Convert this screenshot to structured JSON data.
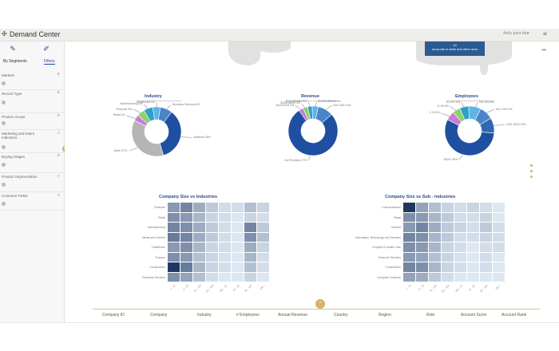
{
  "app": {
    "title": "Demand Center",
    "user": "Antic para dez",
    "user_caret": "v",
    "menu_icon": "hamburger-menu-icon"
  },
  "sidebar": {
    "tabs": [
      {
        "label": "By Segments"
      },
      {
        "label": "Filters"
      }
    ],
    "items": [
      {
        "label": "Markets"
      },
      {
        "label": "Record Type"
      },
      {
        "label": "Product Scope"
      },
      {
        "label": "Marketing and Intent Indicators"
      },
      {
        "label": "Buying Stages"
      },
      {
        "label": "Product Segmentation"
      },
      {
        "label": "Customer Fields"
      }
    ],
    "collapse_label": "<<"
  },
  "tooltip": {
    "line1": "10",
    "line2": "accounts in state and other area"
  },
  "more_menu": "•••",
  "chart_data": [
    {
      "type": "pie",
      "title": "Industry",
      "labels": [
        "Retail",
        "Financial",
        "Manufacturing",
        "Healthcare",
        "Business Services",
        "Software",
        "Other"
      ],
      "values": [
        4,
        5,
        6,
        5,
        8,
        35,
        37
      ],
      "slice_labels": [
        "Retail 4%",
        "Financial 5%",
        "Manufacturing 6%",
        "Healthcare 5%",
        "Business Services 8%",
        "Software 35%",
        "Other 37%"
      ],
      "colors": [
        "#c77cd6",
        "#8fd16a",
        "#2ea1c7",
        "#5fb3e6",
        "#4a85c9",
        "#1f4fa0",
        "#b5b5b5"
      ]
    },
    {
      "type": "pie",
      "title": "Revenue",
      "labels": [
        "$1M-$10M",
        "$10M-$50M",
        "$50M-$100M",
        "$100M-$500M",
        "Over $1B",
        "Not Provided"
      ],
      "values": [
        3,
        3,
        3,
        4,
        10,
        77
      ],
      "slice_labels": [
        "$1M-$10M 3%",
        "$10M-$50M 3%",
        "$50M-$100M 3%",
        "$100M-$500M 4%",
        "Over $1B 10%",
        "Not Provided 77%"
      ],
      "colors": [
        "#c77cd6",
        "#8fd16a",
        "#2ea1c7",
        "#5fb3e6",
        "#4a85c9",
        "#1f4fa0"
      ]
    },
    {
      "type": "pie",
      "title": "Employees",
      "labels": [
        "1-10",
        "11-50",
        "51-200",
        "201-500",
        "501-1000",
        "1001-5000",
        "5000+"
      ],
      "values": [
        6,
        5,
        6,
        8,
        9,
        10,
        56
      ],
      "slice_labels": [
        "1-10 6%",
        "11-50 5%",
        "51-200 6%",
        "201-500 8%",
        "501-1000 9%",
        "1001-5000 10%",
        "5000+ 56%"
      ],
      "colors": [
        "#c77cd6",
        "#8fd16a",
        "#2ea1c7",
        "#5fb3e6",
        "#4a85c9",
        "#3168b5",
        "#1f4fa0"
      ]
    },
    {
      "type": "heatmap",
      "title": "Company Size vs Industries",
      "rows": [
        "Software",
        "Retail",
        "Manufacturing",
        "Media and Internet",
        "Healthcare",
        "Finance",
        "Construction",
        "Business Services"
      ],
      "cols": [
        "1 - 10",
        "11 - 50",
        "51 - 200",
        "201 - 500",
        "501 - 1K",
        "1K - 5K",
        "5K - 10K",
        "10K +"
      ],
      "values": [
        [
          0.45,
          0.55,
          0.35,
          0.2,
          0.1,
          0.1,
          0.25,
          0.15
        ],
        [
          0.5,
          0.45,
          0.3,
          0.15,
          0.1,
          0.05,
          0.15,
          0.1
        ],
        [
          0.55,
          0.5,
          0.35,
          0.2,
          0.1,
          0.05,
          0.55,
          0.2
        ],
        [
          0.6,
          0.55,
          0.35,
          0.2,
          0.1,
          0.05,
          0.5,
          0.25
        ],
        [
          0.45,
          0.5,
          0.3,
          0.15,
          0.1,
          0.05,
          0.35,
          0.15
        ],
        [
          0.5,
          0.45,
          0.25,
          0.15,
          0.08,
          0.05,
          0.3,
          0.1
        ],
        [
          0.95,
          0.6,
          0.3,
          0.15,
          0.1,
          0.05,
          0.25,
          0.1
        ],
        [
          0.5,
          0.4,
          0.25,
          0.1,
          0.05,
          0.05,
          0.15,
          0.05
        ]
      ]
    },
    {
      "type": "heatmap",
      "title": "Company Size vs Sub - Industries",
      "rows": [
        "Lead Activation",
        "Retail",
        "Internet",
        "Information Technology and Services",
        "Hospital & Health Care",
        "Financial Services",
        "Construction",
        "Computer Software"
      ],
      "cols": [
        "1 - 10",
        "11 - 50",
        "51 - 200",
        "201 - 500",
        "501 - 1K",
        "1K - 5K",
        "5K - 10K",
        "10K +"
      ],
      "values": [
        [
          0.95,
          0.4,
          0.25,
          0.15,
          0.1,
          0.15,
          0.1,
          0.05
        ],
        [
          0.5,
          0.45,
          0.3,
          0.2,
          0.1,
          0.1,
          0.15,
          0.05
        ],
        [
          0.45,
          0.55,
          0.35,
          0.2,
          0.15,
          0.1,
          0.2,
          0.1
        ],
        [
          0.55,
          0.5,
          0.3,
          0.2,
          0.1,
          0.1,
          0.15,
          0.1
        ],
        [
          0.5,
          0.45,
          0.3,
          0.15,
          0.1,
          0.05,
          0.1,
          0.1
        ],
        [
          0.45,
          0.4,
          0.25,
          0.15,
          0.08,
          0.05,
          0.1,
          0.05
        ],
        [
          0.55,
          0.5,
          0.3,
          0.15,
          0.1,
          0.05,
          0.1,
          0.05
        ],
        [
          0.4,
          0.35,
          0.2,
          0.1,
          0.05,
          0.05,
          0.05,
          0.05
        ]
      ]
    }
  ],
  "table": {
    "handle_label": "^",
    "columns": [
      "Company ID",
      "Company",
      "Industry",
      "# Employees",
      "Annual Revenue",
      "Country",
      "Region",
      "Role",
      "Account Score",
      "Account Rank"
    ]
  },
  "side_dots": [
    "#d4b36a",
    "#8fd16a",
    "#d4b36a"
  ]
}
